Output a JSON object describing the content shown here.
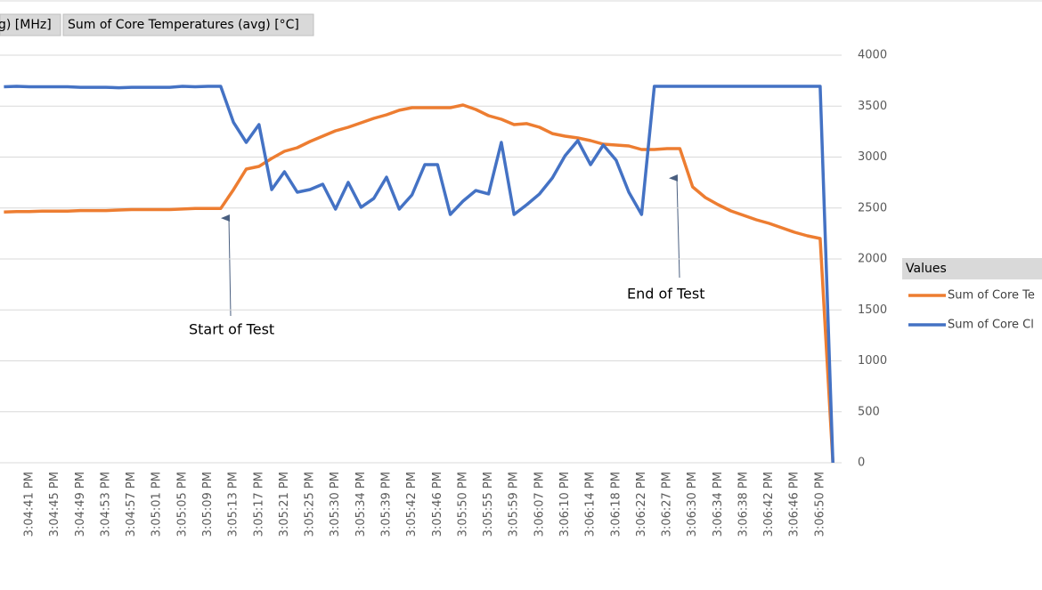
{
  "chart_data": {
    "type": "line",
    "field_buttons": [
      "g) [MHz]",
      "Sum of Core Temperatures (avg) [°C]"
    ],
    "legend_title": "Values",
    "annotations": [
      "Start of Test",
      "End of Test"
    ],
    "categories": [
      null,
      null,
      "3:04:41 PM",
      null,
      "3:04:45 PM",
      null,
      "3:04:49 PM",
      null,
      "3:04:53 PM",
      null,
      "3:04:57 PM",
      null,
      "3:05:01 PM",
      null,
      "3:05:05 PM",
      null,
      "3:05:09 PM",
      null,
      "3:05:13 PM",
      null,
      "3:05:17 PM",
      null,
      "3:05:21 PM",
      null,
      "3:05:25 PM",
      null,
      "3:05:30 PM",
      null,
      "3:05:34 PM",
      null,
      "3:05:39 PM",
      null,
      "3:05:42 PM",
      null,
      "3:05:46 PM",
      null,
      "3:05:50 PM",
      null,
      "3:05:55 PM",
      null,
      "3:05:59 PM",
      null,
      "3:06:07 PM",
      null,
      "3:06:10 PM",
      null,
      "3:06:14 PM",
      null,
      "3:06:18 PM",
      null,
      "3:06:22 PM",
      null,
      "3:06:27 PM",
      null,
      "3:06:30 PM",
      null,
      "3:06:34 PM",
      null,
      "3:06:38 PM",
      null,
      "3:06:42 PM",
      null,
      "3:06:46 PM",
      null,
      "3:06:50 PM",
      null
    ],
    "series": [
      {
        "name": "Sum of Core Te",
        "color": "#ed7d31",
        "values": [
          2460,
          2465,
          2465,
          2470,
          2470,
          2470,
          2475,
          2475,
          2475,
          2480,
          2485,
          2485,
          2485,
          2485,
          2490,
          2495,
          2495,
          2495,
          2680,
          2882,
          2908,
          2987,
          3057,
          3092,
          3153,
          3205,
          3258,
          3293,
          3336,
          3380,
          3415,
          3459,
          3485,
          3485,
          3485,
          3485,
          3511,
          3467,
          3406,
          3371,
          3319,
          3328,
          3293,
          3231,
          3205,
          3188,
          3162,
          3127,
          3118,
          3109,
          3074,
          3074,
          3083,
          3083,
          2707,
          2603,
          2533,
          2472,
          2428,
          2384,
          2349,
          2306,
          2262,
          2227,
          2201,
          0
        ]
      },
      {
        "name": "Sum of Core Cl",
        "color": "#4472c4",
        "values": [
          3690,
          3694,
          3690,
          3690,
          3690,
          3690,
          3685,
          3685,
          3685,
          3680,
          3685,
          3685,
          3685,
          3685,
          3694,
          3690,
          3694,
          3694,
          3340,
          3144,
          3319,
          2681,
          2856,
          2655,
          2681,
          2734,
          2489,
          2751,
          2507,
          2594,
          2803,
          2489,
          2629,
          2926,
          2926,
          2437,
          2568,
          2672,
          2638,
          3144,
          2437,
          2533,
          2638,
          2795,
          3013,
          3162,
          2926,
          3118,
          2969,
          2655,
          2437,
          3694,
          3694,
          3694,
          3694,
          3694,
          3694,
          3694,
          3694,
          3694,
          3694,
          3694,
          3694,
          3694,
          3694,
          0
        ]
      }
    ],
    "ylim": [
      0,
      4000
    ],
    "yticks": [
      0,
      500,
      1000,
      1500,
      2000,
      2500,
      3000,
      3500,
      4000
    ],
    "grid": true
  }
}
